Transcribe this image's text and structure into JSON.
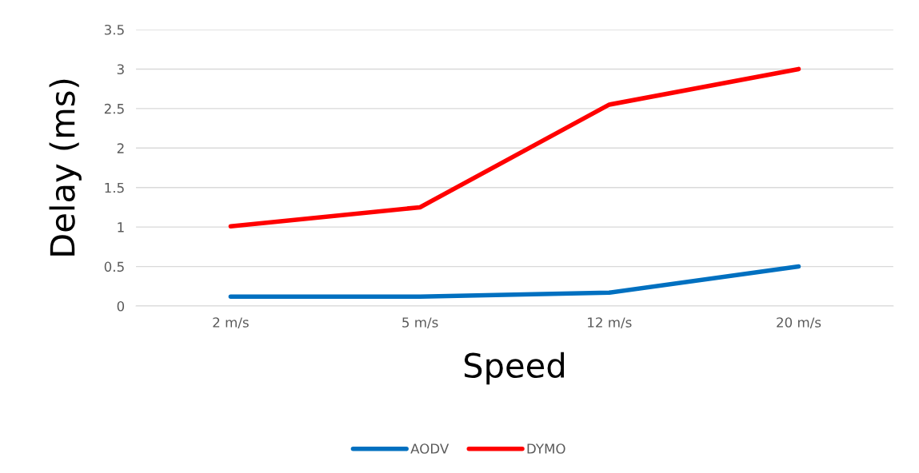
{
  "chart_data": {
    "type": "line",
    "xlabel": "Speed",
    "ylabel": "Delay (ms)",
    "categories": [
      "2 m/s",
      "5 m/s",
      "12 m/s",
      "20 m/s"
    ],
    "series": [
      {
        "name": "AODV",
        "color": "#0070c0",
        "values": [
          0.12,
          0.12,
          0.17,
          0.5
        ]
      },
      {
        "name": "DYMO",
        "color": "#ff0000",
        "values": [
          1.01,
          1.25,
          2.55,
          3.0
        ]
      }
    ],
    "ylim": [
      0,
      3.5
    ],
    "yticks": [
      0,
      0.5,
      1,
      1.5,
      2,
      2.5,
      3,
      3.5
    ],
    "grid": "y",
    "legend": "bottom",
    "marker": "none",
    "line_style": "solid"
  }
}
